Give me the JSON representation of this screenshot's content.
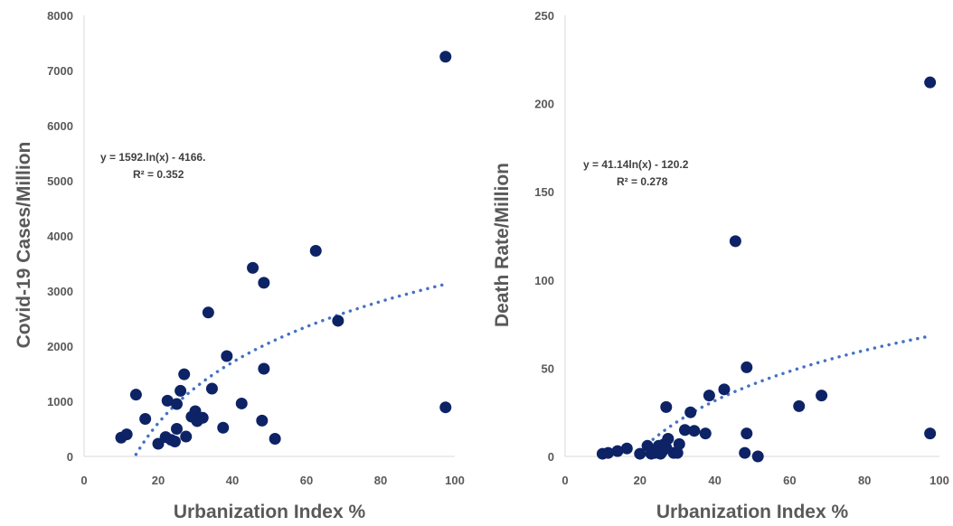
{
  "chart_data": [
    {
      "type": "scatter",
      "title": "",
      "xlabel": "Urbanization Index %",
      "ylabel": "Covid-19 Cases/Million",
      "xlim": [
        0,
        100
      ],
      "ylim": [
        0,
        8000
      ],
      "xticks": [
        "0",
        "20",
        "40",
        "60",
        "80",
        "100"
      ],
      "yticks": [
        "0",
        "1000",
        "2000",
        "3000",
        "4000",
        "5000",
        "6000",
        "7000",
        "8000"
      ],
      "grid": false,
      "marker_color": "#0d2366",
      "trend_color": "#4472c4",
      "trendline": {
        "kind": "logarithmic",
        "a": 1592,
        "b": -4166,
        "x_start": 14,
        "x_end": 97.5
      },
      "equation": "y = 1592.ln(x) - 4166.",
      "r2": "R² = 0.352",
      "points": [
        {
          "x": 10,
          "y": 340
        },
        {
          "x": 11.5,
          "y": 400
        },
        {
          "x": 14,
          "y": 1120
        },
        {
          "x": 16.5,
          "y": 680
        },
        {
          "x": 20,
          "y": 230
        },
        {
          "x": 22,
          "y": 350
        },
        {
          "x": 22.5,
          "y": 1010
        },
        {
          "x": 23.5,
          "y": 300
        },
        {
          "x": 24.5,
          "y": 270
        },
        {
          "x": 25,
          "y": 500
        },
        {
          "x": 25,
          "y": 950
        },
        {
          "x": 26,
          "y": 1190
        },
        {
          "x": 27,
          "y": 1490
        },
        {
          "x": 27.5,
          "y": 360
        },
        {
          "x": 29,
          "y": 720
        },
        {
          "x": 30,
          "y": 820
        },
        {
          "x": 30.5,
          "y": 640
        },
        {
          "x": 32,
          "y": 700
        },
        {
          "x": 33.5,
          "y": 2610
        },
        {
          "x": 34.5,
          "y": 1230
        },
        {
          "x": 37.5,
          "y": 520
        },
        {
          "x": 38.5,
          "y": 1820
        },
        {
          "x": 42.5,
          "y": 960
        },
        {
          "x": 45.5,
          "y": 3420
        },
        {
          "x": 48,
          "y": 650
        },
        {
          "x": 48.5,
          "y": 1590
        },
        {
          "x": 48.5,
          "y": 3150
        },
        {
          "x": 51.5,
          "y": 320
        },
        {
          "x": 62.5,
          "y": 3730
        },
        {
          "x": 68.5,
          "y": 2460
        },
        {
          "x": 97.5,
          "y": 7250
        },
        {
          "x": 97.5,
          "y": 890
        }
      ]
    },
    {
      "type": "scatter",
      "title": "",
      "xlabel": "Urbanization Index %",
      "ylabel": "Death Rate/Million",
      "xlim": [
        0,
        100
      ],
      "ylim": [
        0,
        250
      ],
      "xticks": [
        "0",
        "20",
        "40",
        "60",
        "80",
        "100"
      ],
      "yticks": [
        "0",
        "50",
        "100",
        "150",
        "200",
        "250"
      ],
      "grid": false,
      "marker_color": "#0d2366",
      "trend_color": "#4472c4",
      "trendline": {
        "kind": "logarithmic",
        "a": 41.14,
        "b": -120.2,
        "x_start": 22,
        "x_end": 97.5
      },
      "equation": "y = 41.14ln(x) - 120.2",
      "r2": "R² = 0.278",
      "points": [
        {
          "x": 10,
          "y": 1.5
        },
        {
          "x": 11.5,
          "y": 2
        },
        {
          "x": 14,
          "y": 3
        },
        {
          "x": 16.5,
          "y": 4.5
        },
        {
          "x": 20,
          "y": 1.5
        },
        {
          "x": 22,
          "y": 6
        },
        {
          "x": 23,
          "y": 1.5
        },
        {
          "x": 24,
          "y": 2
        },
        {
          "x": 24.5,
          "y": 4
        },
        {
          "x": 25,
          "y": 6
        },
        {
          "x": 25.5,
          "y": 1.5
        },
        {
          "x": 26,
          "y": 3
        },
        {
          "x": 26.5,
          "y": 7
        },
        {
          "x": 27,
          "y": 5
        },
        {
          "x": 27,
          "y": 28
        },
        {
          "x": 27.5,
          "y": 10
        },
        {
          "x": 29,
          "y": 2
        },
        {
          "x": 30,
          "y": 2
        },
        {
          "x": 30.5,
          "y": 7
        },
        {
          "x": 32,
          "y": 15
        },
        {
          "x": 33.5,
          "y": 25
        },
        {
          "x": 34.5,
          "y": 14.5
        },
        {
          "x": 37.5,
          "y": 13
        },
        {
          "x": 38.5,
          "y": 34.5
        },
        {
          "x": 42.5,
          "y": 38
        },
        {
          "x": 45.5,
          "y": 122
        },
        {
          "x": 48,
          "y": 2
        },
        {
          "x": 48.5,
          "y": 13
        },
        {
          "x": 48.5,
          "y": 50.5
        },
        {
          "x": 51.5,
          "y": 0
        },
        {
          "x": 62.5,
          "y": 28.5
        },
        {
          "x": 68.5,
          "y": 34.5
        },
        {
          "x": 97.5,
          "y": 212
        },
        {
          "x": 97.5,
          "y": 13
        }
      ]
    }
  ]
}
